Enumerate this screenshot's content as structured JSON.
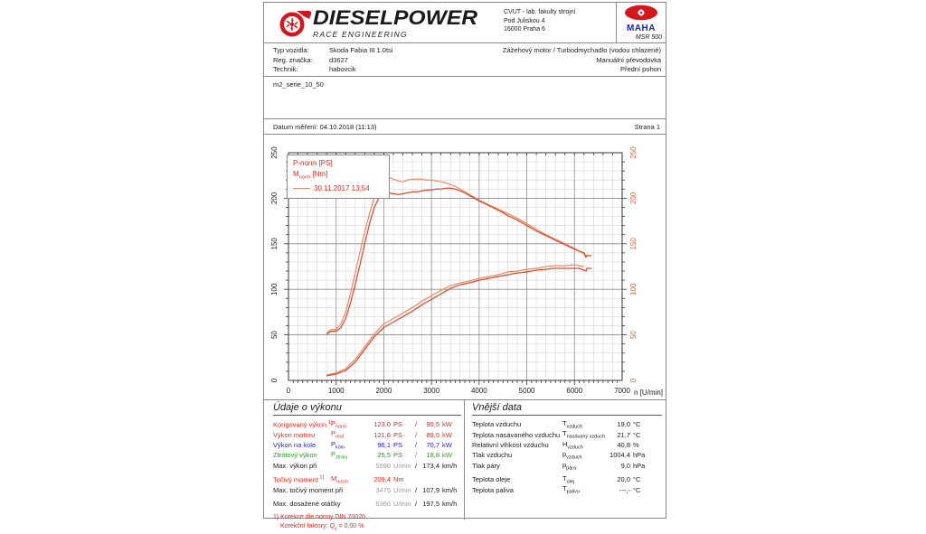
{
  "header": {
    "brand": "DIESELPOWER",
    "brand_sub": "RACE ENGINEERING",
    "address_lines": [
      "CVUT - lab. fakulty strojní",
      "Pod Juliskou 4",
      "16000 Praha 6"
    ],
    "maha": {
      "name": "MAHA",
      "model": "MSR 500"
    }
  },
  "vehicle": {
    "rows": [
      {
        "label": "Typ vozidla:",
        "value": "Skoda Fabia III 1.0tsi"
      },
      {
        "label": "Reg. značka:",
        "value": "d3627"
      },
      {
        "label": "Technik:",
        "value": "habovcik"
      }
    ],
    "right_lines": [
      "Zážehový motor / Turbodmychadlo (vodou chlazené)",
      "Manuální převodovka",
      "Přední pohon"
    ]
  },
  "comment": "m2_serie_10_50",
  "daterow": {
    "date_label": "Datum měření: 04.10.2018 (11:13)",
    "page_label": "Strana 1"
  },
  "chart_data": {
    "type": "line",
    "title": "",
    "xlabel": "n [U/min]",
    "ylabel": "",
    "xlim": [
      0,
      7000
    ],
    "ylim": [
      0,
      250
    ],
    "x_ticks": [
      0,
      1000,
      2000,
      3000,
      4000,
      5000,
      6000,
      7000
    ],
    "y_ticks": [
      0,
      50,
      100,
      150,
      200,
      250
    ],
    "x_minor_step": 200,
    "y_minor_step": 10,
    "grid": "on",
    "legend_position": "top-left",
    "legend": {
      "line1": "P-norm [PS]",
      "line2_base": "M",
      "line2_sub": "norm",
      "line2_rest": " [Nm]",
      "ref_label": "30.11.2017 13:54"
    },
    "series": [
      {
        "name": "M-norm reference 30.11.2017 [Nm]",
        "color": "#ee8a62",
        "x": [
          800,
          900,
          1000,
          1100,
          1200,
          1300,
          1400,
          1500,
          1600,
          1700,
          1800,
          1900,
          2000,
          2100,
          2200,
          2300,
          2400,
          2500,
          2600,
          2700,
          2800,
          2900,
          3000,
          3100,
          3200,
          3300,
          3400,
          3500,
          3600,
          3700,
          3800,
          3900,
          4000,
          4200,
          4400,
          4600,
          4800,
          5000,
          5200,
          5400,
          5600,
          5800,
          6000,
          6100,
          6200,
          6250
        ],
        "y": [
          52,
          56,
          56,
          62,
          75,
          95,
          118,
          141,
          163,
          183,
          201,
          216,
          222,
          223,
          221,
          219,
          218,
          220,
          221,
          221,
          221,
          220,
          220,
          219,
          218,
          217,
          215,
          213,
          210,
          207,
          204,
          201,
          198,
          193,
          188,
          183,
          178,
          172,
          166,
          160,
          155,
          150,
          145,
          142,
          139,
          137
        ]
      },
      {
        "name": "P-norm reference 30.11.2017 [PS]",
        "color": "#ee8a62",
        "x": [
          800,
          1000,
          1200,
          1400,
          1600,
          1800,
          2000,
          2200,
          2400,
          2600,
          2800,
          3000,
          3200,
          3400,
          3600,
          3800,
          4000,
          4200,
          4400,
          4600,
          4800,
          5000,
          5200,
          5400,
          5600,
          5800,
          6000,
          6100,
          6200
        ],
        "y": [
          6,
          8,
          13,
          23,
          37,
          51,
          62,
          68,
          74,
          80,
          87,
          93,
          99,
          104,
          107,
          109,
          112,
          114,
          116,
          119,
          120,
          122,
          123,
          125,
          126,
          126,
          127,
          126,
          125
        ]
      },
      {
        "name": "M-norm measurement 04.10.2018 [Nm]",
        "color": "#d94a30",
        "x": [
          800,
          900,
          1000,
          1100,
          1200,
          1300,
          1400,
          1500,
          1600,
          1700,
          1800,
          1900,
          2000,
          2100,
          2200,
          2300,
          2400,
          2500,
          2600,
          2700,
          2800,
          2900,
          3000,
          3100,
          3200,
          3300,
          3400,
          3500,
          3600,
          3700,
          3800,
          3900,
          4000,
          4200,
          4400,
          4600,
          4800,
          5000,
          5200,
          5400,
          5600,
          5800,
          6000,
          6100,
          6200,
          6240,
          6260,
          6360
        ],
        "y": [
          51,
          54,
          54,
          58,
          68,
          85,
          105,
          127,
          150,
          172,
          190,
          201,
          205,
          206,
          205,
          204,
          205,
          206,
          207,
          207,
          208,
          209,
          209,
          210,
          210,
          211,
          211,
          210,
          208,
          206,
          203,
          200,
          197,
          192,
          187,
          181,
          176,
          170,
          164,
          159,
          154,
          149,
          144,
          142,
          140,
          135,
          137,
          137
        ]
      },
      {
        "name": "P-norm measurement 04.10.2018 [PS]",
        "color": "#d94a30",
        "x": [
          800,
          1000,
          1200,
          1400,
          1600,
          1800,
          2000,
          2200,
          2400,
          2600,
          2800,
          3000,
          3200,
          3400,
          3600,
          3800,
          4000,
          4200,
          4400,
          4600,
          4800,
          5000,
          5200,
          5400,
          5600,
          5800,
          6000,
          6100,
          6200,
          6240,
          6260,
          6360
        ],
        "y": [
          5,
          7,
          11,
          20,
          34,
          48,
          58,
          64,
          70,
          76,
          83,
          89,
          95,
          101,
          105,
          107,
          110,
          112,
          114,
          116,
          118,
          119,
          121,
          122,
          123,
          123,
          123,
          123,
          121,
          120,
          123,
          123
        ]
      }
    ]
  },
  "power_table": {
    "title": "Údaje o výkonu",
    "rows": [
      {
        "label": "Korigovaný výkon",
        "sup": "1)",
        "sym": "P",
        "sub": "norm",
        "v1": "123,0",
        "u1": "PS",
        "sl": "/",
        "v2": "90,5",
        "u2": "kW",
        "color": "red"
      },
      {
        "label": "Výkon motoru",
        "sym": "P",
        "sub": "mot",
        "v1": "121,6",
        "u1": "PS",
        "sl": "/",
        "v2": "89,5",
        "u2": "kW",
        "color": "red"
      },
      {
        "label": "Výkon na kole",
        "sym": "P",
        "sub": "kolo",
        "v1": "96,1",
        "u1": "PS",
        "sl": "/",
        "v2": "70,7",
        "u2": "kW",
        "color": "blue"
      },
      {
        "label": "Ztrátový výkon",
        "sym": "P",
        "sub": "ztráty",
        "v1": "25,5",
        "u1": "PS",
        "sl": "/",
        "v2": "18,8",
        "u2": "kW",
        "color": "green"
      },
      {
        "label": "Max. výkon při",
        "v1": "5590",
        "u1": "U/min",
        "sl": "/",
        "v2": "173,4",
        "u2": "km/h",
        "color": "black",
        "v1gray": true
      },
      {
        "label": "Točivý moment",
        "sup": "1)",
        "sym": "M",
        "sub": "norm",
        "v1": "209,4",
        "u1": "Nm",
        "color": "red",
        "gap": true
      },
      {
        "label": "Max. točivý moment při",
        "v1": "3475",
        "u1": "U/min",
        "sl": "/",
        "v2": "107,9",
        "u2": "km/h",
        "color": "black",
        "v1gray": true
      },
      {
        "label": "Max. dosažené otáčky",
        "v1": "6360",
        "u1": "U/min",
        "sl": "/",
        "v2": "197,5",
        "u2": "km/h",
        "color": "black",
        "v1gray": true,
        "gap": true
      }
    ],
    "footnote1": "1) Korekce dle normy DIN 70020",
    "footnote2_a": "Korekční faktory: Q",
    "footnote2_sub": "v",
    "footnote2_b": " =  0,00 %"
  },
  "ambient_table": {
    "title": "Vnější data",
    "rows": [
      {
        "label": "Teplota vzduchu",
        "sym": "T",
        "sub": "vzduch",
        "v": "19,0",
        "u": "°C"
      },
      {
        "label": "Teplota nasávaného vzduchu",
        "sym": "T",
        "sub": "nasávaný vzduch",
        "v": "21,7",
        "u": "°C"
      },
      {
        "label": "Relativní vlhkost vzduchu",
        "sym": "H",
        "sub": "vzduch",
        "v": "40,8",
        "u": "%"
      },
      {
        "label": "Tlak vzduchu",
        "sym": "p",
        "sub": "vzduch",
        "v": "1004,4",
        "u": "hPa"
      },
      {
        "label": "Tlak páry",
        "sym": "p",
        "sub": "pára",
        "v": "9,0",
        "u": "hPa"
      },
      {
        "label": "Teplota oleje",
        "sym": "T",
        "sub": "olej",
        "v": "20,0",
        "u": "°C",
        "gap": true
      },
      {
        "label": "Teplota paliva",
        "sym": "T",
        "sub": "palivo",
        "v": "---,-",
        "u": "°C"
      }
    ]
  },
  "colors": {
    "measurement_red": "#d94a30",
    "reference_orange": "#ee8a62",
    "legend_text_red": "#e0281c",
    "right_axis_label": "#e0613c",
    "table_red": "#e8271b",
    "table_blue": "#2424d6",
    "table_green": "#1fa01f",
    "table_gray": "#9a9a9a",
    "brand_red": "#d6161e",
    "maha_blue": "#1626b4"
  }
}
